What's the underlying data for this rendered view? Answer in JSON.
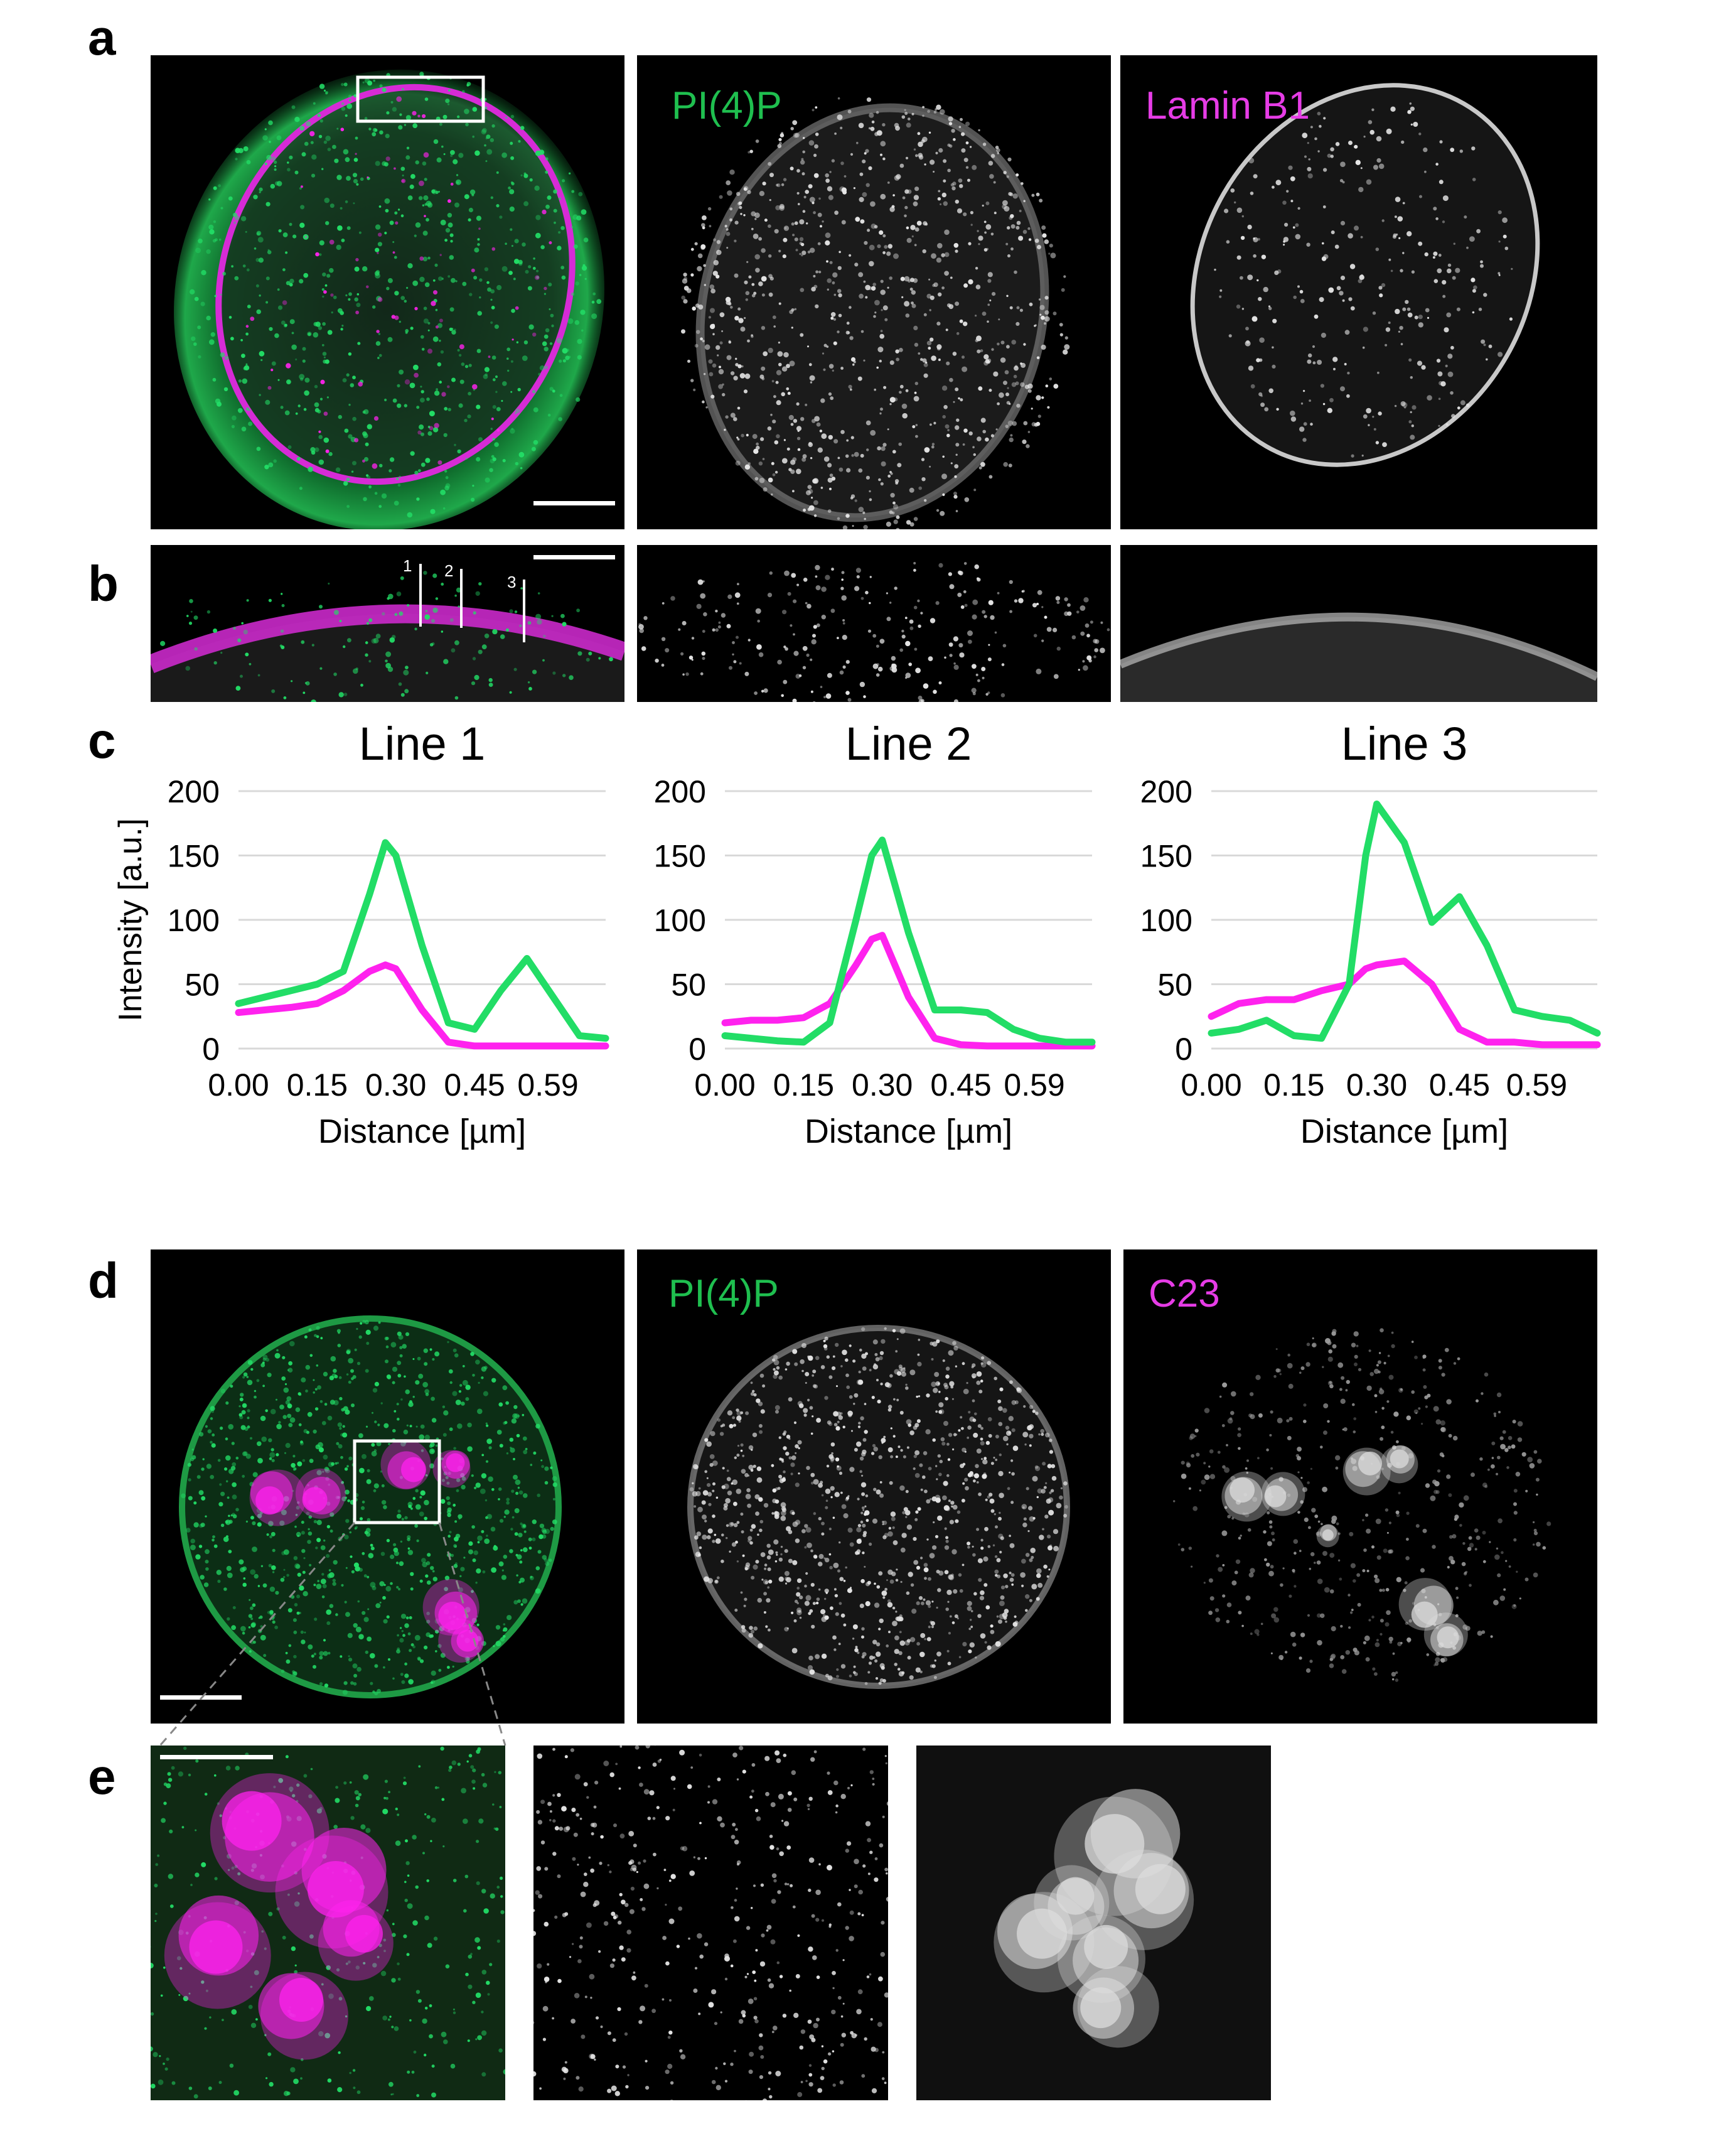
{
  "figure": {
    "panel_letters": {
      "a": "a",
      "b": "b",
      "c": "c",
      "d": "d",
      "e": "e"
    },
    "panel_a": {
      "label_pi4p": "PI(4)P",
      "label_lamin": "Lamin B1"
    },
    "panel_b": {
      "line_markers": [
        "1",
        "2",
        "3"
      ]
    },
    "panel_d": {
      "label_pi4p": "PI(4)P",
      "label_c23": "C23"
    }
  },
  "colors": {
    "green": "#22dd66",
    "magenta": "#ff22ee",
    "green_label": "#1fbf4f",
    "magenta_label": "#e63ce6"
  },
  "chart_data": [
    {
      "type": "line",
      "title": "Line 1",
      "xlabel": "Distance [µm]",
      "ylabel": "Intensity [a.u.]",
      "xticks": [
        "0.00",
        "0.15",
        "0.30",
        "0.45",
        "0.59"
      ],
      "yticks": [
        "0",
        "50",
        "100",
        "150",
        "200"
      ],
      "xlim": [
        0,
        0.7
      ],
      "ylim": [
        0,
        200
      ],
      "grid": true,
      "x": [
        0.0,
        0.05,
        0.1,
        0.15,
        0.2,
        0.25,
        0.28,
        0.3,
        0.35,
        0.4,
        0.45,
        0.5,
        0.55,
        0.6,
        0.65,
        0.7
      ],
      "series": [
        {
          "color": "green",
          "values": [
            35,
            40,
            45,
            50,
            60,
            120,
            160,
            150,
            80,
            20,
            15,
            45,
            70,
            40,
            10,
            8
          ]
        },
        {
          "color": "magenta",
          "values": [
            28,
            30,
            32,
            35,
            45,
            60,
            65,
            62,
            30,
            5,
            2,
            2,
            2,
            2,
            2,
            2
          ]
        }
      ]
    },
    {
      "type": "line",
      "title": "Line 2",
      "xlabel": "Distance [µm]",
      "ylabel": "",
      "xticks": [
        "0.00",
        "0.15",
        "0.30",
        "0.45",
        "0.59"
      ],
      "yticks": [
        "0",
        "50",
        "100",
        "150",
        "200"
      ],
      "xlim": [
        0,
        0.7
      ],
      "ylim": [
        0,
        200
      ],
      "grid": true,
      "x": [
        0.0,
        0.05,
        0.1,
        0.15,
        0.2,
        0.25,
        0.28,
        0.3,
        0.35,
        0.4,
        0.45,
        0.5,
        0.55,
        0.6,
        0.65,
        0.7
      ],
      "series": [
        {
          "color": "green",
          "values": [
            10,
            8,
            6,
            5,
            20,
            100,
            150,
            162,
            90,
            30,
            30,
            28,
            15,
            8,
            5,
            5
          ]
        },
        {
          "color": "magenta",
          "values": [
            20,
            22,
            22,
            24,
            35,
            65,
            85,
            88,
            40,
            8,
            3,
            2,
            2,
            2,
            2,
            2
          ]
        }
      ]
    },
    {
      "type": "line",
      "title": "Line 3",
      "xlabel": "Distance [µm]",
      "ylabel": "",
      "xticks": [
        "0.00",
        "0.15",
        "0.30",
        "0.45",
        "0.59"
      ],
      "yticks": [
        "0",
        "50",
        "100",
        "150",
        "200"
      ],
      "xlim": [
        0,
        0.7
      ],
      "ylim": [
        0,
        200
      ],
      "grid": true,
      "x": [
        0.0,
        0.05,
        0.1,
        0.15,
        0.2,
        0.25,
        0.28,
        0.3,
        0.35,
        0.4,
        0.45,
        0.5,
        0.55,
        0.6,
        0.65,
        0.7
      ],
      "series": [
        {
          "color": "green",
          "values": [
            12,
            15,
            22,
            10,
            8,
            50,
            150,
            190,
            160,
            98,
            118,
            80,
            30,
            25,
            22,
            12
          ]
        },
        {
          "color": "magenta",
          "values": [
            25,
            35,
            38,
            38,
            45,
            50,
            62,
            65,
            68,
            50,
            15,
            5,
            5,
            3,
            3,
            3
          ]
        }
      ]
    }
  ]
}
